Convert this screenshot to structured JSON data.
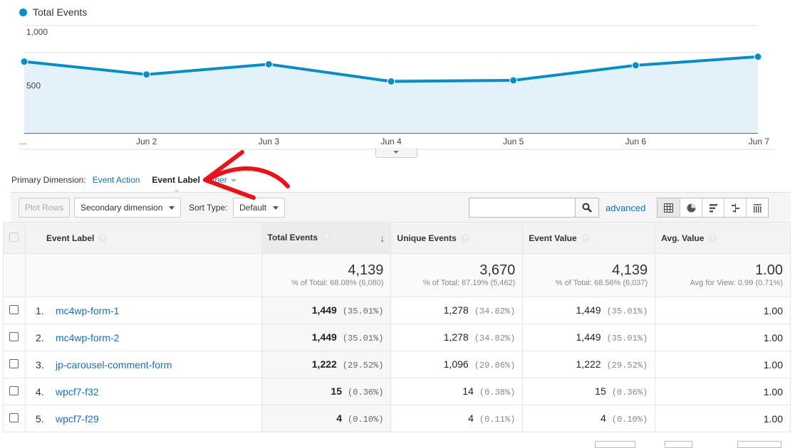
{
  "legend": {
    "label": "Total Events",
    "color": "#058dc7"
  },
  "chart_data": {
    "type": "area",
    "series": [
      {
        "name": "Total Events",
        "values": [
          665,
          545,
          640,
          480,
          490,
          630,
          710
        ]
      }
    ],
    "x_labels": [
      "...",
      "Jun 2",
      "Jun 3",
      "Jun 4",
      "Jun 5",
      "Jun 6",
      "Jun 7"
    ],
    "y_ticks": [
      "1,000",
      "500"
    ],
    "ylim": [
      0,
      1000
    ],
    "grid": true,
    "line_color": "#058dc7",
    "fill_color": "#e3f1fa"
  },
  "primary_dimension": {
    "label": "Primary Dimension:",
    "event_action": "Event Action",
    "event_label": "Event Label",
    "other": "Other"
  },
  "toolbar": {
    "plot_rows": "Plot Rows",
    "secondary_dimension": "Secondary dimension",
    "sort_type_label": "Sort Type:",
    "sort_type_value": "Default",
    "search_value": "",
    "advanced": "advanced"
  },
  "table": {
    "headers": {
      "event_label": "Event Label",
      "total_events": "Total Events",
      "unique_events": "Unique Events",
      "event_value": "Event Value",
      "avg_value": "Avg. Value"
    },
    "totals": {
      "total_events": "4,139",
      "total_events_sub": "% of Total: 68.08% (6,080)",
      "unique_events": "3,670",
      "unique_events_sub": "% of Total: 67.19% (5,462)",
      "event_value": "4,139",
      "event_value_sub": "% of Total: 68.56% (6,037)",
      "avg_value": "1.00",
      "avg_value_sub": "Avg for View: 0.99 (0.71%)"
    },
    "rows": [
      {
        "n": "1.",
        "label": "mc4wp-form-1",
        "te": "1,449",
        "te_pct": "(35.01%)",
        "ue": "1,278",
        "ue_pct": "(34.82%)",
        "ev": "1,449",
        "ev_pct": "(35.01%)",
        "av": "1.00"
      },
      {
        "n": "2.",
        "label": "mc4wp-form-2",
        "te": "1,449",
        "te_pct": "(35.01%)",
        "ue": "1,278",
        "ue_pct": "(34.82%)",
        "ev": "1,449",
        "ev_pct": "(35.01%)",
        "av": "1.00"
      },
      {
        "n": "3.",
        "label": "jp-carousel-comment-form",
        "te": "1,222",
        "te_pct": "(29.52%)",
        "ue": "1,096",
        "ue_pct": "(29.86%)",
        "ev": "1,222",
        "ev_pct": "(29.52%)",
        "av": "1.00"
      },
      {
        "n": "4.",
        "label": "wpcf7-f32",
        "te": "15",
        "te_pct": "(0.36%)",
        "ue": "14",
        "ue_pct": "(0.38%)",
        "ev": "15",
        "ev_pct": "(0.36%)",
        "av": "1.00"
      },
      {
        "n": "5.",
        "label": "wpcf7-f29",
        "te": "4",
        "te_pct": "(0.10%)",
        "ue": "4",
        "ue_pct": "(0.11%)",
        "ev": "4",
        "ev_pct": "(0.10%)",
        "av": "1.00"
      }
    ]
  },
  "annotation_color": "#e8141b"
}
